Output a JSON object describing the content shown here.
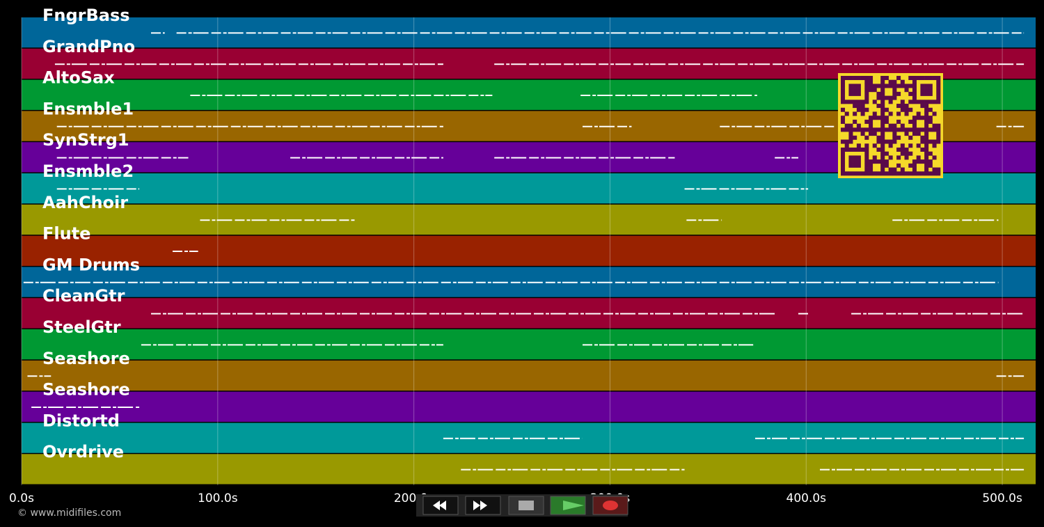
{
  "chart_data": {
    "type": "piano-roll",
    "tracks": [
      {
        "name": "FngrBass",
        "color": "#006699",
        "spans": [
          [
            66,
            73
          ],
          [
            79,
            511
          ]
        ]
      },
      {
        "name": "GrandPno",
        "color": "#990033",
        "spans": [
          [
            17,
            215
          ],
          [
            241,
            511
          ]
        ]
      },
      {
        "name": "AltoSax",
        "color": "#009933",
        "spans": [
          [
            86,
            240
          ],
          [
            285,
            375
          ]
        ]
      },
      {
        "name": "Ensmble1",
        "color": "#996600",
        "spans": [
          [
            18,
            215
          ],
          [
            286,
            311
          ],
          [
            356,
            415
          ],
          [
            497,
            511
          ]
        ]
      },
      {
        "name": "SynStrg1",
        "color": "#660099",
        "spans": [
          [
            18,
            85
          ],
          [
            137,
            215
          ],
          [
            241,
            333
          ],
          [
            384,
            396
          ]
        ]
      },
      {
        "name": "Ensmble2",
        "color": "#009999",
        "spans": [
          [
            18,
            60
          ],
          [
            338,
            401
          ]
        ]
      },
      {
        "name": "AahChoir",
        "color": "#999900",
        "spans": [
          [
            91,
            170
          ],
          [
            339,
            357
          ],
          [
            444,
            498
          ]
        ]
      },
      {
        "name": "Flute",
        "color": "#992200",
        "spans": [
          [
            77,
            90
          ]
        ]
      },
      {
        "name": "GM Drums",
        "color": "#006699",
        "spans": [
          [
            1,
            498
          ]
        ]
      },
      {
        "name": "CleanGtr",
        "color": "#990033",
        "spans": [
          [
            66,
            385
          ],
          [
            396,
            401
          ],
          [
            423,
            511
          ]
        ]
      },
      {
        "name": "SteelGtr",
        "color": "#009933",
        "spans": [
          [
            61,
            215
          ],
          [
            286,
            373
          ]
        ]
      },
      {
        "name": "Seashore",
        "color": "#996600",
        "spans": [
          [
            3,
            15
          ],
          [
            497,
            511
          ]
        ]
      },
      {
        "name": "Seashore",
        "color": "#660099",
        "spans": [
          [
            5,
            60
          ]
        ]
      },
      {
        "name": "Distortd",
        "color": "#009999",
        "spans": [
          [
            215,
            286
          ],
          [
            374,
            511
          ]
        ]
      },
      {
        "name": "Ovrdrive",
        "color": "#999900",
        "spans": [
          [
            224,
            338
          ],
          [
            407,
            511
          ]
        ]
      }
    ],
    "xlim": [
      0,
      517
    ],
    "xticks": [
      {
        "value": 0,
        "label": "0.0s"
      },
      {
        "value": 100,
        "label": "100.0s"
      },
      {
        "value": 200,
        "label": "200.0s"
      },
      {
        "value": 300,
        "label": "300.0s"
      },
      {
        "value": 400,
        "label": "400.0s"
      },
      {
        "value": 500,
        "label": "500.0s"
      }
    ],
    "grid": true
  },
  "footer": {
    "copyright": "© www.midifiles.com"
  }
}
